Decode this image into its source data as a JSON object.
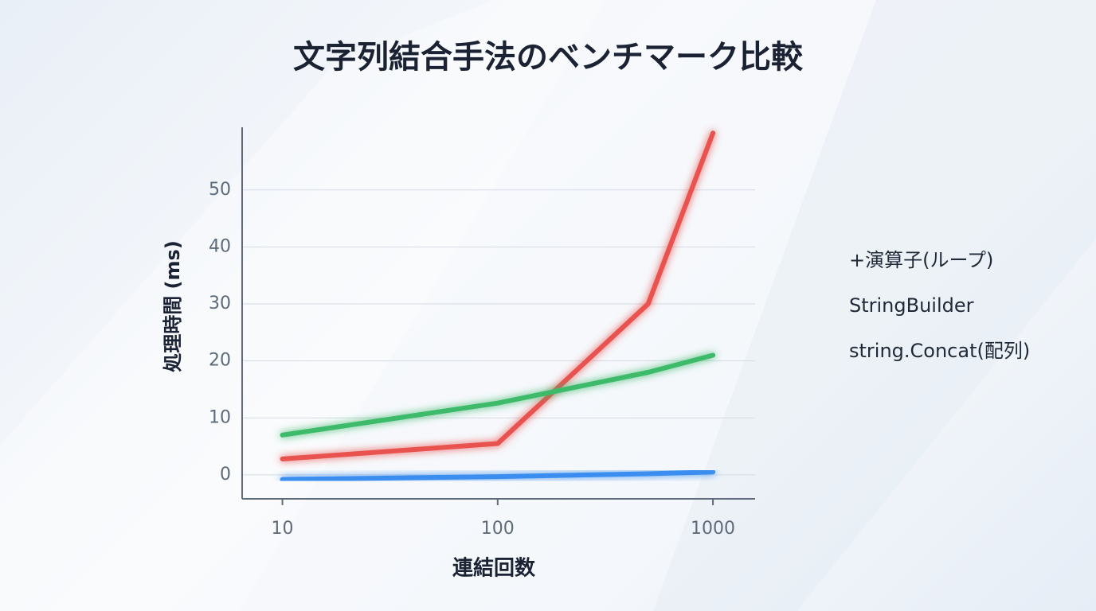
{
  "chart_data": {
    "type": "line",
    "title": "文字列結合手法のベンチマーク比較",
    "x_label": "連結回数",
    "y_label": "処理時間 (ms)",
    "x": [
      10,
      100,
      500,
      1000
    ],
    "x_scale": "log",
    "xlim": [
      6.5,
      1570
    ],
    "xticks": [
      10,
      100,
      1000
    ],
    "ylim": [
      -4.2,
      61
    ],
    "yticks": [
      0,
      10,
      20,
      30,
      40,
      50
    ],
    "grid": true,
    "legend": "right",
    "series": [
      {
        "name": "+演算子(ループ)",
        "color": "#e8534f",
        "values": [
          2.8,
          5.5,
          30,
          60
        ]
      },
      {
        "name": "StringBuilder",
        "color": "#3b8ef0",
        "values": [
          -0.8,
          -0.3,
          0.2,
          0.5
        ]
      },
      {
        "name": "string.Concat(配列)",
        "color": "#3dba6a",
        "values": [
          7,
          12.6,
          18,
          21
        ]
      }
    ]
  }
}
